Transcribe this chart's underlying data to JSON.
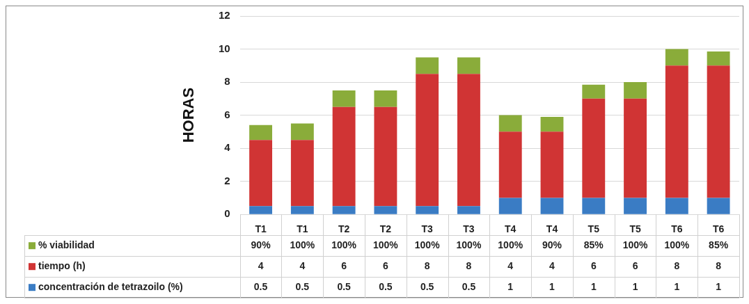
{
  "chart_data": {
    "type": "bar",
    "stacked": true,
    "ylabel": "HORAS",
    "categories": [
      "T1",
      "T1",
      "T2",
      "T2",
      "T3",
      "T3",
      "T4",
      "T4",
      "T5",
      "T5",
      "T6",
      "T6"
    ],
    "series": [
      {
        "name": "concentración de tetrazoilo (%)",
        "color": "#3a7cc4",
        "values": [
          0.5,
          0.5,
          0.5,
          0.5,
          0.5,
          0.5,
          1,
          1,
          1,
          1,
          1,
          1
        ],
        "value_labels": [
          "0.5",
          "0.5",
          "0.5",
          "0.5",
          "0.5",
          "0.5",
          "1",
          "1",
          "1",
          "1",
          "1",
          "1"
        ]
      },
      {
        "name": "tiempo (h)",
        "color": "#d03434",
        "values": [
          4,
          4,
          6,
          6,
          8,
          8,
          4,
          4,
          6,
          6,
          8,
          8
        ],
        "value_labels": [
          "4",
          "4",
          "6",
          "6",
          "8",
          "8",
          "4",
          "4",
          "6",
          "6",
          "8",
          "8"
        ]
      },
      {
        "name": "% viabilidad",
        "color": "#8aac3a",
        "values": [
          0.9,
          1,
          1,
          1,
          1,
          1,
          1,
          0.9,
          0.85,
          1,
          1,
          0.85
        ],
        "value_labels": [
          "90%",
          "100%",
          "100%",
          "100%",
          "100%",
          "100%",
          "100%",
          "90%",
          "85%",
          "100%",
          "100%",
          "85%"
        ]
      }
    ],
    "ylim": [
      0,
      12
    ],
    "yticks": [
      0,
      2,
      4,
      6,
      8,
      10,
      12
    ],
    "grid": "y",
    "legend": "bottom"
  }
}
